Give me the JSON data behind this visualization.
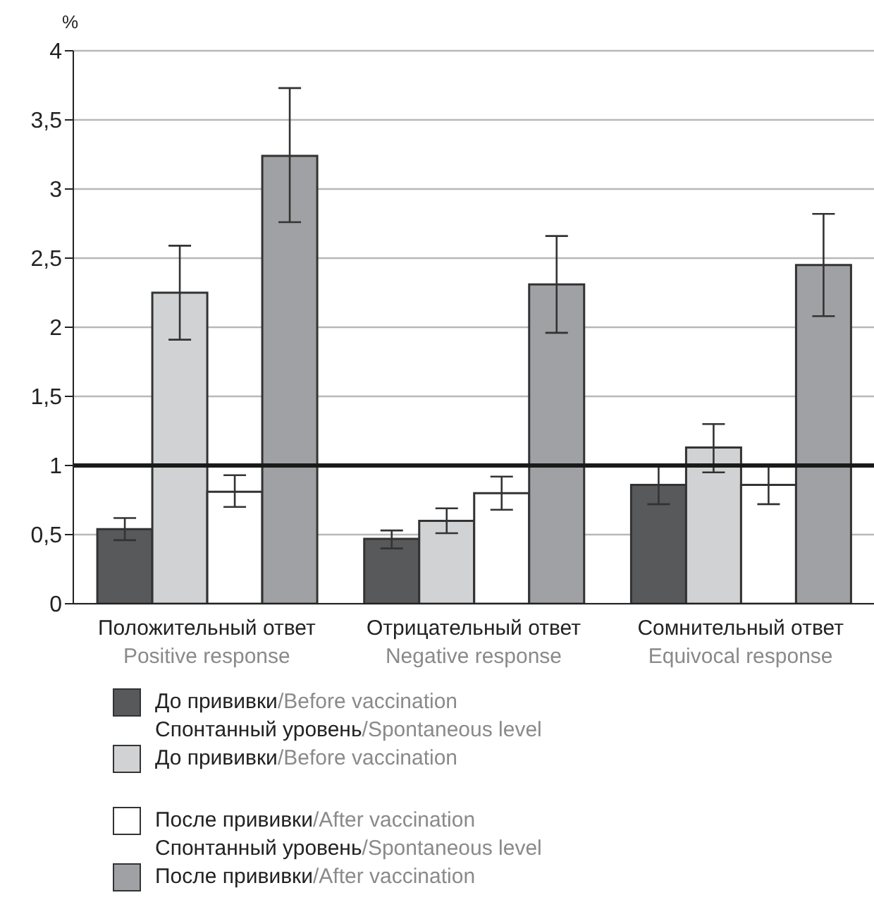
{
  "chart_data": {
    "type": "bar",
    "ylabel": "%",
    "categories": [
      "Положительный ответ\nPositive response",
      "Отрицательный ответ\nNegative response",
      "Сомнительный ответ\nEquivocal response"
    ],
    "series": [
      {
        "name": "До прививки/Before vaccination\nСпонтанный уровень/Spontaneous level",
        "color": "#58595b",
        "values": [
          0.54,
          0.47,
          0.86
        ],
        "errors": [
          [
            0.46,
            0.62
          ],
          [
            0.4,
            0.53
          ],
          [
            0.72,
            1.0
          ]
        ]
      },
      {
        "name": "До прививки/Before vaccination",
        "color": "#d1d2d4",
        "values": [
          2.25,
          0.6,
          1.13
        ],
        "errors": [
          [
            1.91,
            2.59
          ],
          [
            0.51,
            0.69
          ],
          [
            0.95,
            1.3
          ]
        ]
      },
      {
        "name": "После прививки/After vaccination\nСпонтанный уровень/Spontaneous level",
        "color": "#ffffff",
        "values": [
          0.81,
          0.8,
          0.86
        ],
        "errors": [
          [
            0.7,
            0.93
          ],
          [
            0.68,
            0.92
          ],
          [
            0.72,
            1.0
          ]
        ]
      },
      {
        "name": "После прививки/After vaccination",
        "color": "#a0a1a4",
        "values": [
          3.24,
          2.31,
          2.45
        ],
        "errors": [
          [
            2.76,
            3.73
          ],
          [
            1.96,
            2.66
          ],
          [
            2.08,
            2.82
          ]
        ]
      }
    ],
    "ylim": [
      0,
      4
    ],
    "yticks": [
      0,
      {
        "value": 0.5,
        "label": "0,5"
      },
      1,
      {
        "value": 1.5,
        "label": "1,5"
      },
      2,
      {
        "value": 2.5,
        "label": "2,5"
      },
      3,
      {
        "value": 3.5,
        "label": "3,5"
      },
      4
    ],
    "ref_lines": [
      {
        "axis": "y",
        "value": 1,
        "color": "#1a1a1a"
      }
    ],
    "grid": "y",
    "legend": "bottom"
  }
}
